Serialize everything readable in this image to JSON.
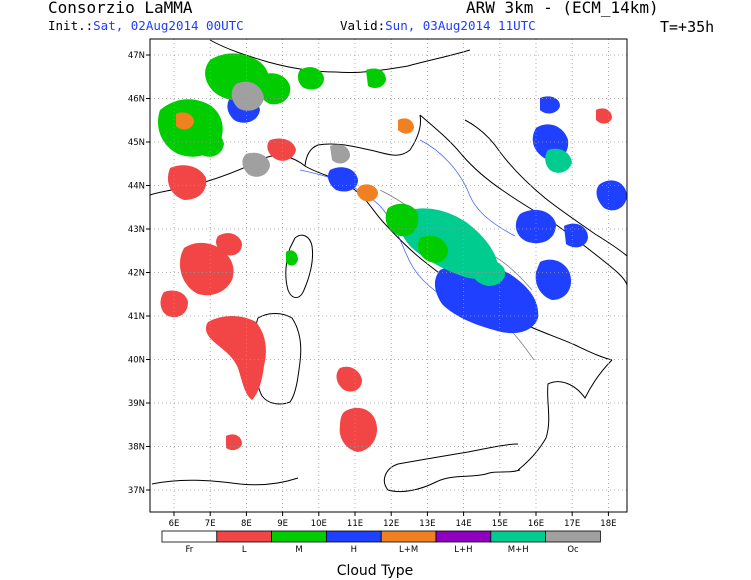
{
  "header": {
    "organization": "Consorzio LaMMA",
    "model": "ARW 3km - (ECM_14km)",
    "init_label": "Init.:",
    "init_value": "Sat, 02Aug2014 00UTC",
    "valid_label": "Valid:",
    "valid_value": "Sun, 03Aug2014 11UTC",
    "forecast_step": "T=+35h"
  },
  "map": {
    "lat_ticks": [
      "47N",
      "46N",
      "45N",
      "44N",
      "43N",
      "42N",
      "41N",
      "40N",
      "39N",
      "38N",
      "37N"
    ],
    "lon_ticks": [
      "6E",
      "7E",
      "8E",
      "9E",
      "10E",
      "11E",
      "12E",
      "13E",
      "14E",
      "15E",
      "16E",
      "17E",
      "18E"
    ]
  },
  "legend": {
    "title": "Cloud Type",
    "classes": [
      {
        "label": "Fr",
        "color": "#ffffff"
      },
      {
        "label": "L",
        "color": "#f24545"
      },
      {
        "label": "M",
        "color": "#00cc00"
      },
      {
        "label": "H",
        "color": "#2040ff"
      },
      {
        "label": "L+M",
        "color": "#f08020"
      },
      {
        "label": "L+H",
        "color": "#9000c0"
      },
      {
        "label": "M+H",
        "color": "#00cc90"
      },
      {
        "label": "Oc",
        "color": "#a0a0a0"
      }
    ]
  },
  "colors": {
    "low": "#f24545",
    "mid": "#00cc00",
    "high": "#2040ff",
    "low_mid": "#f08020",
    "low_high": "#9000c0",
    "mid_high": "#00cc90",
    "overcast": "#a0a0a0"
  }
}
